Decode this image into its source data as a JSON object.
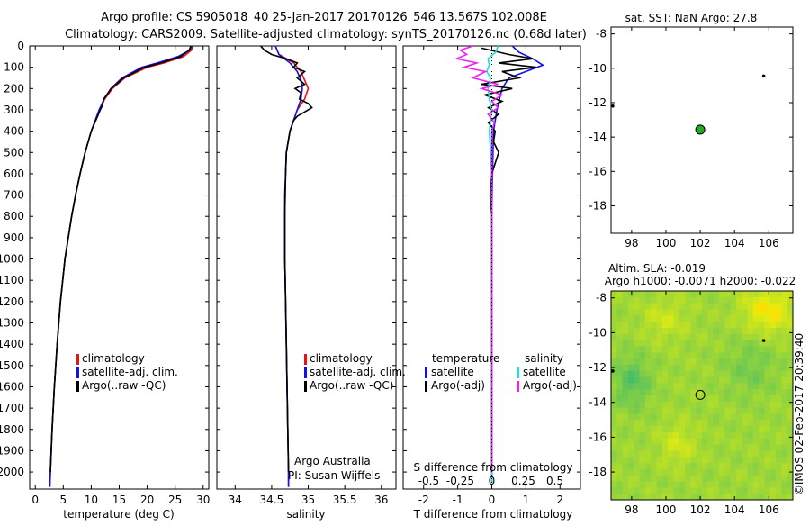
{
  "header": {
    "title1": "Argo profile: CS 5905018_40 25-Jan-2017 20170126_546 13.567S 102.008E",
    "title2": "Climatology: CARS2009. Satellite-adjusted climatology: synTS_20170126.nc (0.68d later)"
  },
  "depth_axis": {
    "ticks": [
      0,
      100,
      200,
      300,
      400,
      500,
      600,
      700,
      800,
      900,
      1000,
      1100,
      1200,
      1300,
      1400,
      1500,
      1600,
      1700,
      1800,
      1900,
      2000
    ],
    "range": [
      0,
      2080
    ]
  },
  "colors": {
    "climatology": "#ee1111",
    "satellite": "#1111ee",
    "argo": "#000000",
    "sat_salinity": "#22dddd",
    "argo_salinity": "#ee22ee",
    "marker": "#22aa22"
  },
  "chart_data": [
    {
      "type": "line",
      "id": "temperature",
      "xlabel": "temperature (deg C)",
      "xlim": [
        -1,
        31
      ],
      "xticks": [
        0,
        5,
        10,
        15,
        20,
        25,
        30
      ],
      "ylim": [
        0,
        2080
      ],
      "legend": {
        "placement": "lower-center",
        "entries": [
          "climatology",
          "satellite-adj. clim.",
          "Argo(..raw -QC)"
        ]
      },
      "series": [
        {
          "name": "climatology",
          "color": "#ee1111",
          "depth": [
            0,
            20,
            50,
            80,
            100,
            150,
            200,
            250,
            300,
            400,
            500,
            600,
            700,
            800,
            1000,
            1200,
            1400,
            1600,
            1800,
            2000,
            2070
          ],
          "values": [
            28.2,
            27.9,
            26.5,
            23.0,
            20.0,
            16.0,
            13.8,
            12.4,
            11.5,
            10.0,
            8.9,
            8.0,
            7.2,
            6.5,
            5.3,
            4.5,
            3.9,
            3.4,
            3.0,
            2.7,
            2.6
          ]
        },
        {
          "name": "satellite-adj. clim.",
          "color": "#1111ee",
          "depth": [
            0,
            20,
            50,
            80,
            100,
            150,
            200,
            250,
            300,
            400,
            500,
            600,
            700,
            800,
            1000,
            1200,
            1400,
            1600,
            1800,
            2000,
            2070
          ],
          "values": [
            28.0,
            27.6,
            25.5,
            21.8,
            19.0,
            15.5,
            13.5,
            12.3,
            11.4,
            10.0,
            8.9,
            8.0,
            7.2,
            6.5,
            5.3,
            4.5,
            3.9,
            3.4,
            3.0,
            2.7,
            2.6
          ]
        },
        {
          "name": "Argo(..raw -QC)",
          "color": "#000000",
          "depth": [
            0,
            20,
            50,
            80,
            100,
            150,
            200,
            250,
            280,
            300,
            320,
            400,
            500,
            600,
            700,
            800,
            1000,
            1200,
            1400,
            1600,
            1800,
            2000
          ],
          "values": [
            27.8,
            27.5,
            26.0,
            22.5,
            19.5,
            15.8,
            13.6,
            12.2,
            12.0,
            11.6,
            11.3,
            10.0,
            8.9,
            8.0,
            7.2,
            6.5,
            5.3,
            4.5,
            3.9,
            3.4,
            3.0,
            2.7
          ]
        }
      ]
    },
    {
      "type": "line",
      "id": "salinity",
      "xlabel": "salinity",
      "xlim": [
        33.75,
        36.2
      ],
      "xticks": [
        34,
        34.5,
        35,
        35.5,
        36
      ],
      "ylim": [
        0,
        2080
      ],
      "legend": {
        "placement": "lower-center",
        "entries": [
          "climatology",
          "satellite-adj. clim.",
          "Argo(..raw -QC)"
        ]
      },
      "annotation": [
        "Argo Australia",
        "PI: Susan Wijffels"
      ],
      "series": [
        {
          "name": "climatology",
          "color": "#ee1111",
          "depth": [
            0,
            40,
            80,
            120,
            160,
            200,
            250,
            300,
            400,
            500,
            600,
            800,
            1000,
            1200,
            1400,
            1600,
            1800,
            2000,
            2070
          ],
          "values": [
            34.55,
            34.6,
            34.8,
            34.9,
            34.95,
            35.0,
            34.95,
            34.85,
            34.75,
            34.7,
            34.69,
            34.68,
            34.68,
            34.69,
            34.7,
            34.71,
            34.72,
            34.73,
            34.73
          ]
        },
        {
          "name": "satellite-adj. clim.",
          "color": "#1111ee",
          "depth": [
            0,
            40,
            80,
            120,
            160,
            200,
            250,
            300,
            400,
            500,
            600,
            800,
            1000,
            1200,
            1400,
            1600,
            1800,
            2000,
            2070
          ],
          "values": [
            34.55,
            34.6,
            34.75,
            34.85,
            34.9,
            34.92,
            34.9,
            34.85,
            34.75,
            34.7,
            34.69,
            34.68,
            34.68,
            34.69,
            34.7,
            34.71,
            34.72,
            34.73,
            34.73
          ]
        },
        {
          "name": "Argo(..raw -QC)",
          "color": "#000000",
          "depth": [
            0,
            20,
            40,
            60,
            80,
            100,
            120,
            150,
            180,
            200,
            220,
            250,
            270,
            290,
            310,
            330,
            350,
            400,
            500,
            600,
            700,
            800,
            1000,
            1200,
            1400,
            1600,
            1800,
            2000
          ],
          "values": [
            34.35,
            34.4,
            34.5,
            34.7,
            34.85,
            34.8,
            34.95,
            34.85,
            34.95,
            34.82,
            34.9,
            34.88,
            35.0,
            35.05,
            34.95,
            34.85,
            34.8,
            34.75,
            34.7,
            34.69,
            34.68,
            34.68,
            34.68,
            34.69,
            34.7,
            34.71,
            34.72,
            34.73
          ]
        }
      ]
    },
    {
      "type": "line",
      "id": "differences",
      "xlabel_bottom": "T difference from climatology",
      "xlabel_top": "S difference from climatology",
      "xlim_T": [
        -2.6,
        2.6
      ],
      "xticks_T": [
        -2,
        -1,
        0,
        1,
        2
      ],
      "xticks_S_labels": [
        "-0.5",
        "-0.25",
        "0",
        "0.25",
        "0.5"
      ],
      "xticks_S_values": [
        -0.5,
        -0.25,
        0,
        0.25,
        0.5
      ],
      "s_scale": 3.7,
      "ylim": [
        0,
        2080
      ],
      "legend": {
        "placement": "lower-center",
        "headers": [
          "temperature",
          "salinity"
        ],
        "entries": [
          "satellite",
          "Argo(-adj)",
          "satellite",
          "Argo(-adj)"
        ]
      },
      "series": [
        {
          "name": "T satellite",
          "color": "#1111ee",
          "kind": "T",
          "depth": [
            0,
            30,
            60,
            90,
            120,
            150,
            200,
            300,
            400,
            600,
            800,
            1000,
            1400,
            1800,
            2050
          ],
          "values": [
            0.6,
            0.8,
            1.2,
            1.5,
            1.0,
            0.5,
            0.3,
            0.15,
            0.05,
            0.02,
            0.0,
            0.0,
            0.0,
            0.0,
            0.0
          ]
        },
        {
          "name": "T Argo(-adj)",
          "color": "#000000",
          "kind": "T",
          "depth": [
            10,
            40,
            60,
            80,
            100,
            120,
            150,
            180,
            200,
            230,
            260,
            290,
            320,
            360,
            400,
            450,
            500,
            600,
            700,
            800,
            900,
            1000,
            1200,
            1400,
            1600,
            1800,
            2000
          ],
          "values": [
            -0.3,
            0.5,
            1.2,
            0.2,
            1.3,
            0.3,
            0.8,
            -0.3,
            0.6,
            -0.2,
            0.3,
            -0.1,
            0.2,
            -0.1,
            0.1,
            0.05,
            0.2,
            0.0,
            -0.05,
            0.0,
            0.0,
            0.0,
            0.0,
            0.0,
            0.0,
            0.0,
            0.0
          ]
        },
        {
          "name": "S satellite",
          "color": "#22dddd",
          "kind": "S",
          "depth": [
            0,
            30,
            60,
            90,
            120,
            150,
            200,
            250,
            300,
            400,
            500,
            600,
            800,
            1000,
            1400,
            1800,
            2050
          ],
          "values": [
            0.05,
            0.03,
            -0.03,
            -0.02,
            -0.04,
            -0.01,
            -0.03,
            -0.02,
            0.0,
            -0.02,
            -0.01,
            0.0,
            0.0,
            0.0,
            0.0,
            0.0,
            0.0
          ]
        },
        {
          "name": "S Argo(-adj)",
          "color": "#ee22ee",
          "kind": "S",
          "depth": [
            0,
            20,
            40,
            60,
            80,
            100,
            120,
            150,
            180,
            200,
            230,
            260,
            290,
            320,
            360,
            400,
            500,
            600,
            800,
            1000,
            1400,
            1800,
            2000
          ],
          "values": [
            -0.15,
            -0.25,
            -0.2,
            -0.28,
            -0.12,
            -0.22,
            -0.05,
            -0.15,
            0.05,
            -0.08,
            0.08,
            0.0,
            0.05,
            -0.03,
            0.02,
            0.0,
            0.0,
            0.0,
            0.0,
            0.0,
            0.0,
            0.0,
            0.0
          ]
        }
      ]
    },
    {
      "type": "scatter",
      "id": "sst_map",
      "title": "sat. SST: NaN Argo: 27.8",
      "xlim": [
        96.8,
        107.4
      ],
      "ylim": [
        -19.6,
        -7.6
      ],
      "xticks": [
        98,
        100,
        102,
        104,
        106
      ],
      "yticks": [
        -8,
        -10,
        -12,
        -14,
        -16,
        -18
      ],
      "points": [
        {
          "name": "argo-position",
          "x": 102.0,
          "y": -13.57
        },
        {
          "name": "other-float-1",
          "x": 105.7,
          "y": -10.45
        },
        {
          "name": "other-float-2",
          "x": 96.9,
          "y": -12.2
        }
      ]
    },
    {
      "type": "heatmap",
      "id": "sla_map",
      "title1": "Altim. SLA: -0.019",
      "title2": "Argo h1000: -0.0071 h2000: -0.022",
      "xlim": [
        96.8,
        107.4
      ],
      "ylim": [
        -19.6,
        -7.6
      ],
      "xticks": [
        98,
        100,
        102,
        104,
        106
      ],
      "yticks": [
        -8,
        -10,
        -12,
        -14,
        -16,
        -18
      ],
      "points": [
        {
          "name": "argo-position",
          "x": 102.0,
          "y": -13.57
        },
        {
          "name": "other-float-1",
          "x": 105.7,
          "y": -10.45
        },
        {
          "name": "other-float-2",
          "x": 96.9,
          "y": -12.2
        }
      ]
    }
  ],
  "credit": "©IMOS 02-Feb-2017 20:39:40"
}
